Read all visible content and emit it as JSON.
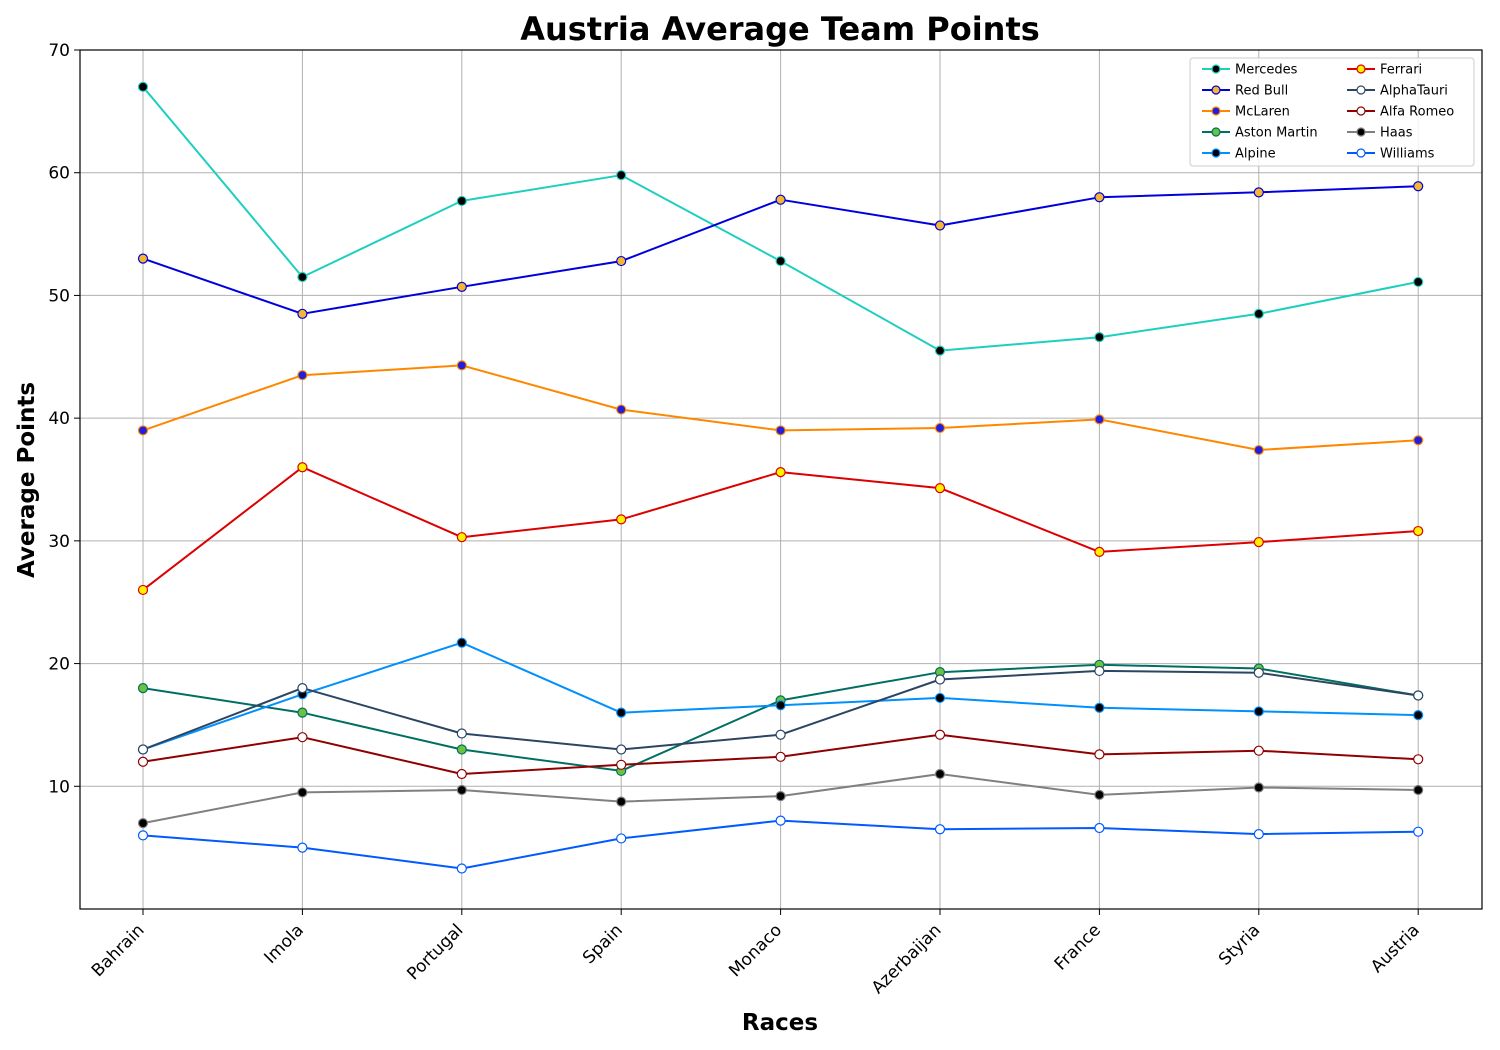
{
  "chart_data": {
    "type": "line",
    "title": "Austria Average Team Points",
    "xlabel": "Races",
    "ylabel": "Average Points",
    "categories": [
      "Bahrain",
      "Imola",
      "Portugal",
      "Spain",
      "Monaco",
      "Azerbaijan",
      "France",
      "Styria",
      "Austria"
    ],
    "ylim": [
      0,
      70
    ],
    "yticks": [
      10,
      20,
      30,
      40,
      50,
      60,
      70
    ],
    "grid": true,
    "legend_position": "top-right",
    "series": [
      {
        "name": "Mercedes",
        "color": "#1ecfbf",
        "marker_fill": "#000000",
        "marker_edge": "#1ecfbf",
        "values": [
          67.0,
          51.5,
          57.7,
          59.8,
          52.8,
          45.5,
          46.6,
          48.5,
          51.1
        ]
      },
      {
        "name": "Red Bull",
        "color": "#0000dd",
        "marker_fill": "#f5b731",
        "marker_edge": "#0000dd",
        "values": [
          53.0,
          48.5,
          50.7,
          52.8,
          57.8,
          55.7,
          58.0,
          58.4,
          58.9
        ]
      },
      {
        "name": "McLaren",
        "color": "#ff8700",
        "marker_fill": "#1f1fdd",
        "marker_edge": "#ff8700",
        "values": [
          39.0,
          43.5,
          44.3,
          40.7,
          39.0,
          39.2,
          39.9,
          37.4,
          38.2
        ]
      },
      {
        "name": "Aston Martin",
        "color": "#006f62",
        "marker_fill": "#6bc240",
        "marker_edge": "#006f62",
        "values": [
          18.0,
          16.0,
          13.0,
          11.25,
          17.0,
          19.3,
          19.9,
          19.6,
          17.4
        ]
      },
      {
        "name": "Alpine",
        "color": "#0090ff",
        "marker_fill": "#000000",
        "marker_edge": "#0090ff",
        "values": [
          13.0,
          17.5,
          21.7,
          16.0,
          16.6,
          17.2,
          16.4,
          16.1,
          15.8
        ]
      },
      {
        "name": "Ferrari",
        "color": "#dc0000",
        "marker_fill": "#fff200",
        "marker_edge": "#dc0000",
        "values": [
          26.0,
          36.0,
          30.3,
          31.75,
          35.6,
          34.3,
          29.1,
          29.9,
          30.8
        ]
      },
      {
        "name": "AlphaTauri",
        "color": "#2b4562",
        "marker_fill": "#ffffff",
        "marker_edge": "#2b4562",
        "values": [
          13.0,
          18.0,
          14.3,
          13.0,
          14.2,
          18.7,
          19.4,
          19.25,
          17.4
        ]
      },
      {
        "name": "Alfa Romeo",
        "color": "#900000",
        "marker_fill": "#ffffff",
        "marker_edge": "#900000",
        "values": [
          12.0,
          14.0,
          11.0,
          11.75,
          12.4,
          14.2,
          12.6,
          12.9,
          12.2
        ]
      },
      {
        "name": "Haas",
        "color": "#808080",
        "marker_fill": "#000000",
        "marker_edge": "#808080",
        "values": [
          7.0,
          9.5,
          9.7,
          8.75,
          9.2,
          11.0,
          9.3,
          9.9,
          9.7
        ]
      },
      {
        "name": "Williams",
        "color": "#005aff",
        "marker_fill": "#ffffff",
        "marker_edge": "#005aff",
        "values": [
          6.0,
          5.0,
          3.3,
          5.75,
          7.2,
          6.5,
          6.6,
          6.1,
          6.3
        ]
      }
    ]
  }
}
